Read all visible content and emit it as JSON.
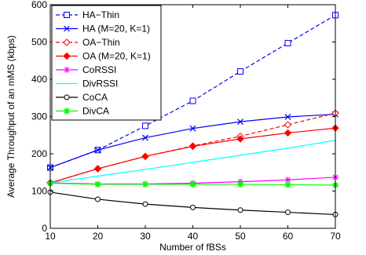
{
  "chart_data": {
    "type": "line",
    "xlabel": "Number of fBSs",
    "ylabel": "Average Throughput of an mMS (kbps)",
    "x": [
      10,
      20,
      30,
      40,
      50,
      60,
      70
    ],
    "xlim": [
      10,
      70
    ],
    "ylim": [
      0,
      600
    ],
    "xticks": [
      10,
      20,
      30,
      40,
      50,
      60,
      70
    ],
    "yticks": [
      0,
      100,
      200,
      300,
      400,
      500,
      600
    ],
    "grid": false,
    "legend_position": "top-left",
    "series": [
      {
        "name": "HA−Thin",
        "color": "#0000ff",
        "dash": "dashed",
        "marker": "square",
        "x": [
          10,
          20,
          30,
          40,
          50,
          60,
          70
        ],
        "values": [
          163,
          210,
          275,
          342,
          421,
          497,
          572
        ]
      },
      {
        "name": "HA (M=20, K=1)",
        "color": "#0000ff",
        "dash": "solid",
        "marker": "x",
        "x": [
          10,
          20,
          30,
          40,
          50,
          60,
          70
        ],
        "values": [
          163,
          210,
          243,
          268,
          286,
          299,
          306
        ]
      },
      {
        "name": "OA−Thin",
        "color": "#ff0000",
        "dash": "dashed",
        "marker": "diamond-open",
        "x": [
          10,
          20,
          30,
          40,
          50,
          60,
          70
        ],
        "values": [
          122,
          160,
          193,
          221,
          247,
          278,
          309
        ]
      },
      {
        "name": "OA (M=20, K=1)",
        "color": "#ff0000",
        "dash": "solid",
        "marker": "diamond-filled",
        "x": [
          10,
          20,
          30,
          40,
          50,
          60,
          70
        ],
        "values": [
          122,
          160,
          193,
          220,
          240,
          256,
          269
        ]
      },
      {
        "name": "CoRSSI",
        "color": "#ff00ff",
        "dash": "solid",
        "marker": "star",
        "x": [
          10,
          20,
          30,
          40,
          50,
          60,
          70
        ],
        "values": [
          122,
          119,
          119,
          121,
          125,
          130,
          137
        ]
      },
      {
        "name": "DivRSSI",
        "color": "#00ffff",
        "dash": "solid",
        "marker": "none",
        "x": [
          10,
          20,
          30,
          40,
          50,
          60,
          70
        ],
        "values": [
          122,
          140,
          158,
          177,
          196,
          215,
          236
        ]
      },
      {
        "name": "CoCA",
        "color": "#000000",
        "dash": "solid",
        "marker": "circle-open",
        "x": [
          10,
          20,
          30,
          40,
          50,
          60,
          70
        ],
        "values": [
          97,
          78,
          65,
          56,
          49,
          43,
          37
        ]
      },
      {
        "name": "DivCA",
        "color": "#00ff00",
        "dash": "solid",
        "marker": "star-filled",
        "x": [
          10,
          20,
          30,
          40,
          50,
          60,
          70
        ],
        "values": [
          121,
          118,
          118,
          118,
          118,
          117,
          116
        ]
      }
    ]
  }
}
